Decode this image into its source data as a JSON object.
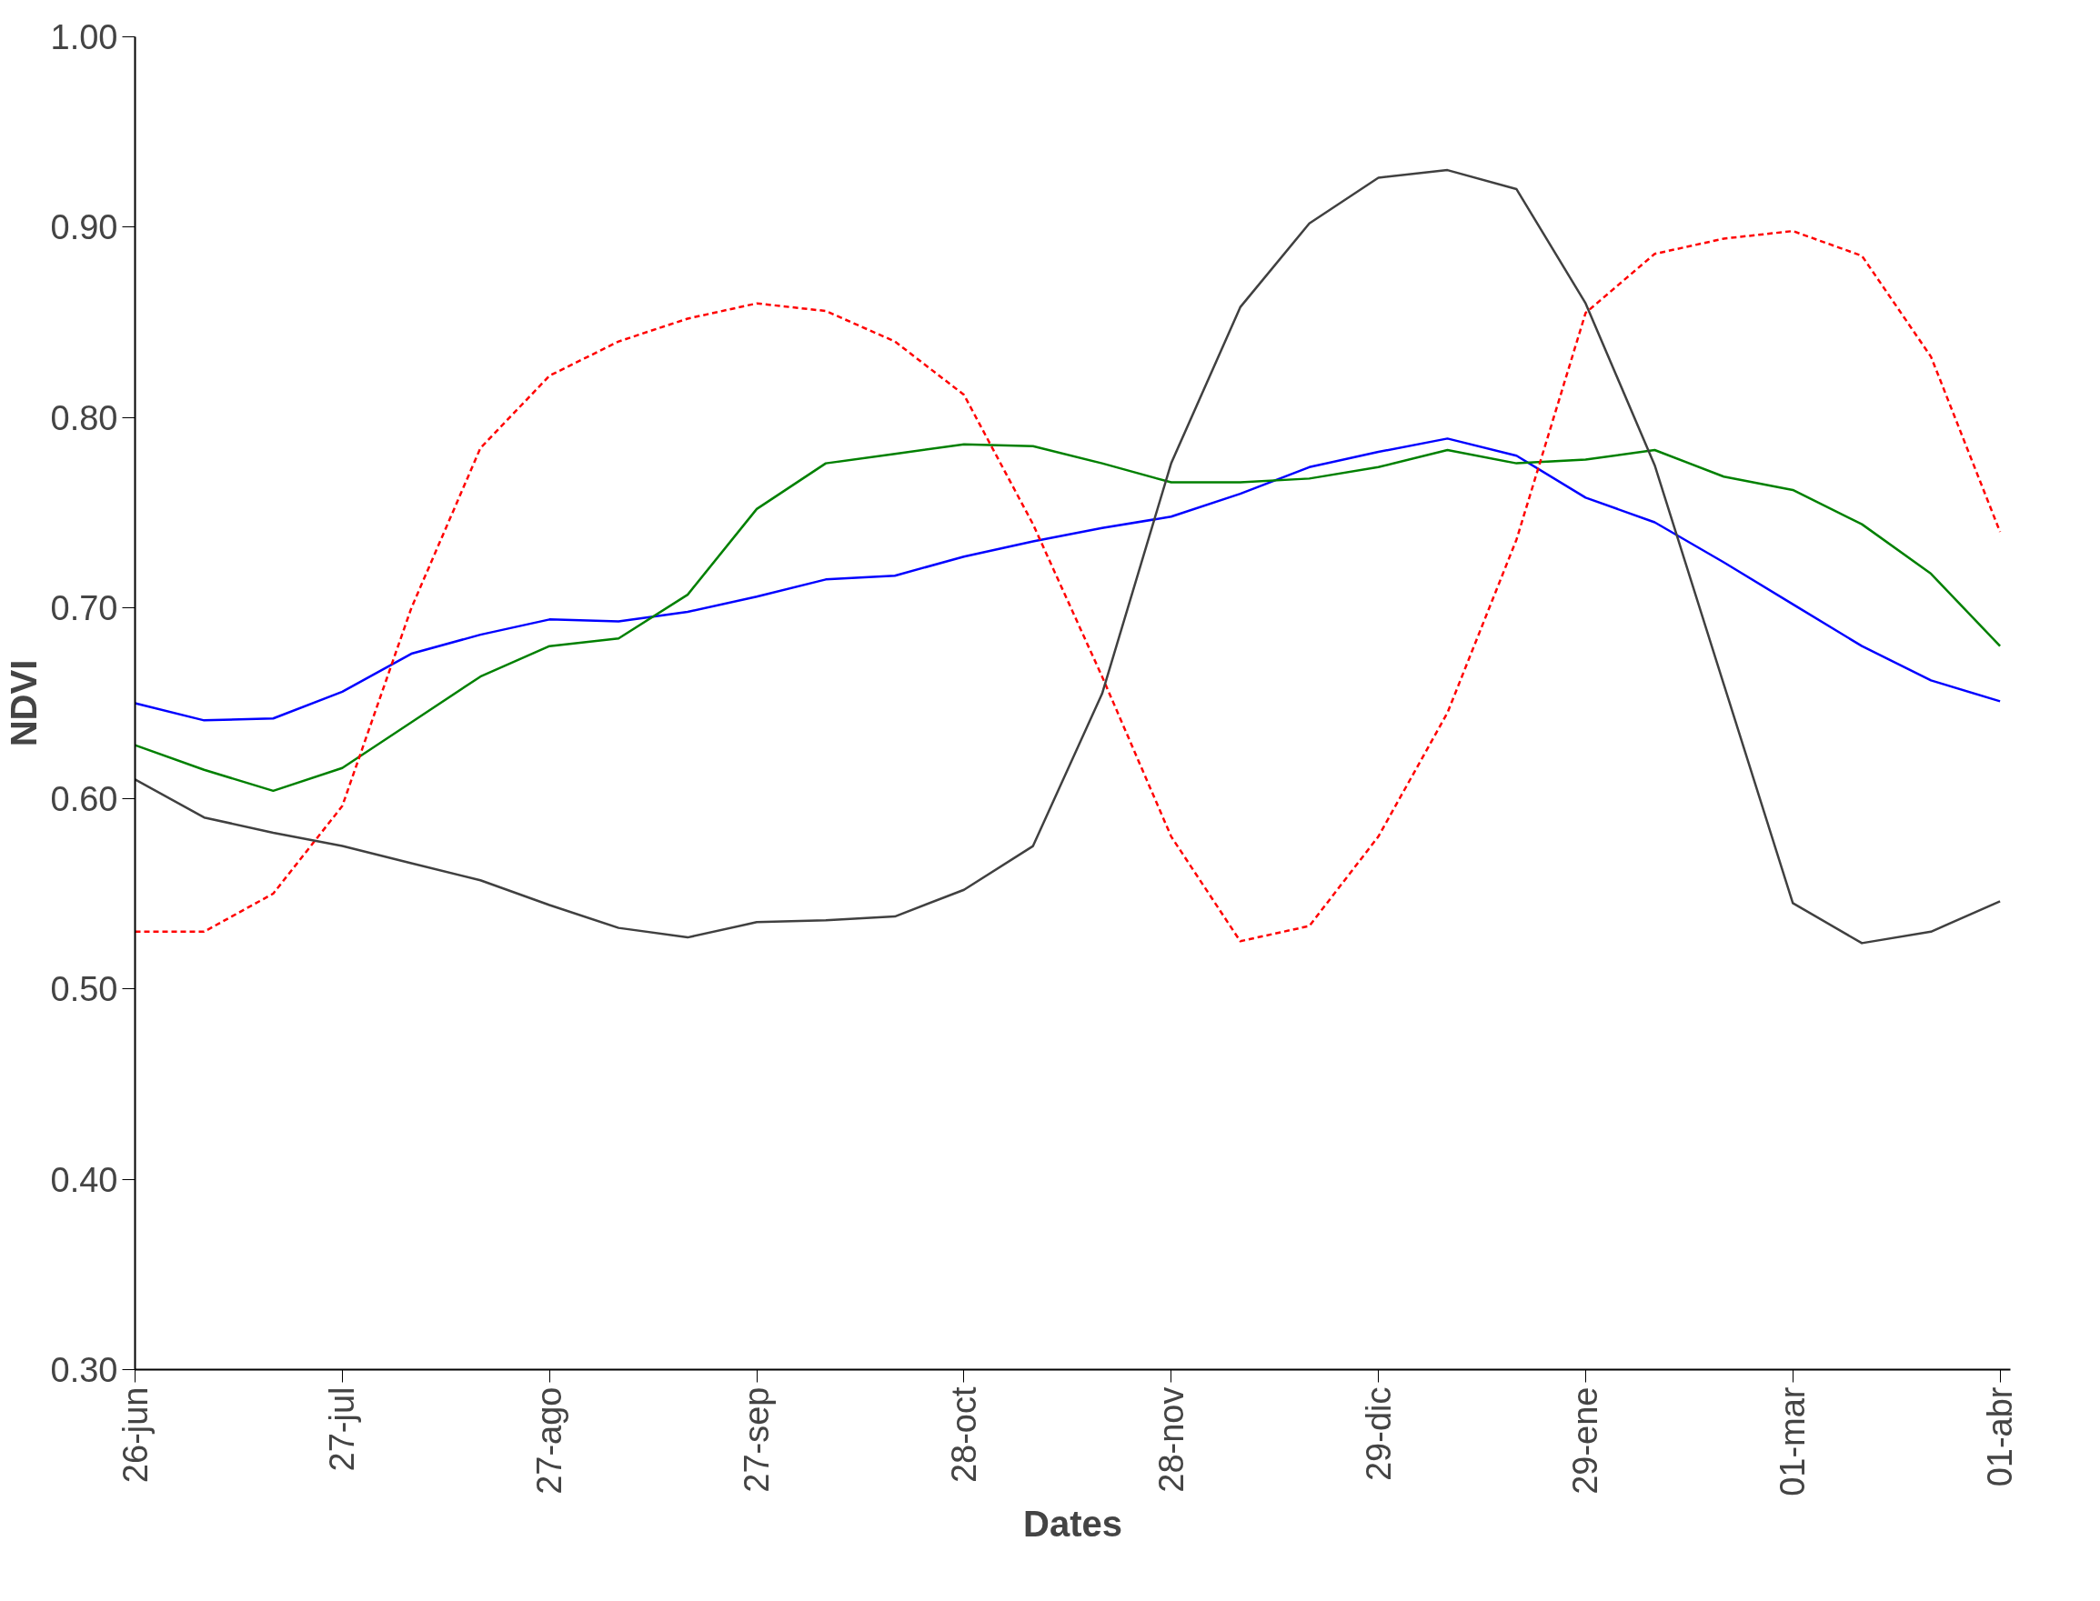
{
  "chart_data": {
    "type": "line",
    "xlabel": "Dates",
    "ylabel": "NDVI",
    "categories": [
      "26-jun",
      null,
      null,
      "27-jul",
      null,
      null,
      "27-ago",
      null,
      null,
      "27-sep",
      null,
      null,
      "28-oct",
      null,
      null,
      "28-nov",
      null,
      null,
      "29-dic",
      null,
      null,
      "29-ene",
      null,
      null,
      "01-mar",
      null,
      null,
      "01-abr"
    ],
    "series": [
      {
        "color": "#0000ff",
        "line_style": "solid",
        "values": [
          0.65,
          0.641,
          0.642,
          0.656,
          0.676,
          0.686,
          0.694,
          0.693,
          0.698,
          0.706,
          0.715,
          0.717,
          0.727,
          0.735,
          0.742,
          0.748,
          0.76,
          0.774,
          0.782,
          0.789,
          0.78,
          0.758,
          0.745,
          0.724,
          0.702,
          0.68,
          0.662,
          0.651
        ]
      },
      {
        "color": "#008000",
        "line_style": "solid",
        "values": [
          0.628,
          0.615,
          0.604,
          0.616,
          0.64,
          0.664,
          0.68,
          0.684,
          0.707,
          0.752,
          0.776,
          0.781,
          0.786,
          0.785,
          0.776,
          0.766,
          0.766,
          0.768,
          0.774,
          0.783,
          0.776,
          0.778,
          0.783,
          0.769,
          0.762,
          0.744,
          0.718,
          0.68
        ]
      },
      {
        "color": "#ff0000",
        "line_style": "dashed",
        "values": [
          0.53,
          0.53,
          0.55,
          0.596,
          0.7,
          0.784,
          0.822,
          0.84,
          0.852,
          0.86,
          0.856,
          0.84,
          0.812,
          0.744,
          0.664,
          0.58,
          0.525,
          0.533,
          0.58,
          0.645,
          0.736,
          0.855,
          0.886,
          0.894,
          0.898,
          0.885,
          0.832,
          0.74
        ]
      },
      {
        "color": "#404040",
        "line_style": "solid",
        "values": [
          0.61,
          0.59,
          0.582,
          0.575,
          0.566,
          0.557,
          0.544,
          0.532,
          0.527,
          0.535,
          0.536,
          0.538,
          0.552,
          0.575,
          0.655,
          0.776,
          0.858,
          0.902,
          0.926,
          0.93,
          0.92,
          0.86,
          0.775,
          0.66,
          0.545,
          0.524,
          0.53,
          0.546
        ]
      }
    ],
    "ylim": [
      0.3,
      1.0
    ],
    "yticks": [
      {
        "value": 0.3,
        "label": "0.30"
      },
      {
        "value": 0.4,
        "label": "0.40"
      },
      {
        "value": 0.5,
        "label": "0.50"
      },
      {
        "value": 0.6,
        "label": "0.60"
      },
      {
        "value": 0.7,
        "label": "0.70"
      },
      {
        "value": 0.8,
        "label": "0.80"
      },
      {
        "value": 0.9,
        "label": "0.90"
      },
      {
        "value": 1.0,
        "label": "1.00"
      }
    ]
  }
}
